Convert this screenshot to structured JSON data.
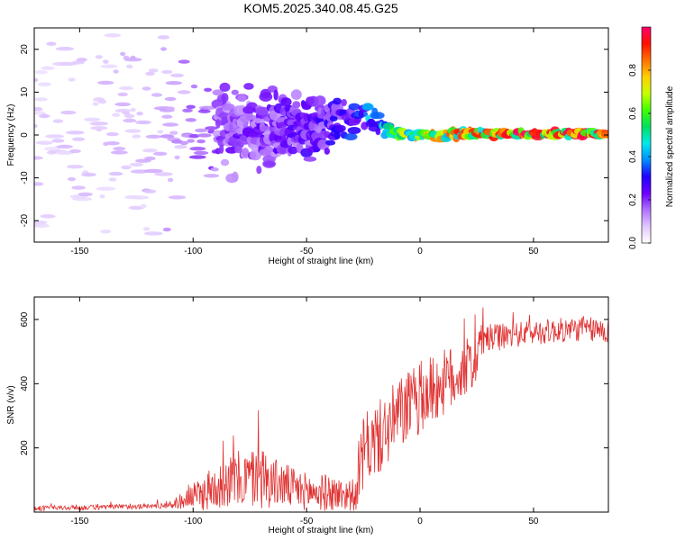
{
  "title": "KOM5.2025.340.08.45.G25",
  "chart_data": [
    {
      "id": "spectrogram",
      "type": "heatmap",
      "xlabel": "Height of straight line (km)",
      "ylabel": "Frequency (Hz)",
      "xlim": [
        -170,
        83
      ],
      "ylim": [
        -25,
        25
      ],
      "xticks": [
        -150,
        -100,
        -50,
        0,
        50
      ],
      "yticks": [
        -20,
        -10,
        0,
        10,
        20
      ],
      "colorbar": {
        "label": "Normalized spectral amplitude",
        "range": [
          0,
          1
        ],
        "ticks": [
          "0.0",
          "0.2",
          "0.4",
          "0.6",
          "0.8"
        ],
        "colors": [
          "#ffffff",
          "#e0c8ff",
          "#b070ff",
          "#6a00ff",
          "#2000ff",
          "#0090ff",
          "#00e8e8",
          "#00e060",
          "#40ff00",
          "#c8ff00",
          "#ffd000",
          "#ff7000",
          "#ff1000",
          "#ff0070"
        ]
      },
      "trace": {
        "x": [
          -170,
          -120,
          -110,
          -100,
          -90,
          -80,
          -70,
          -60,
          -50,
          -45,
          -40,
          -35,
          -30,
          -25,
          -20,
          -15,
          -10,
          -5,
          0,
          5,
          10,
          15,
          20,
          30,
          50,
          83
        ],
        "y_center": [
          0,
          0,
          0,
          1,
          1.5,
          2,
          2,
          1.5,
          2,
          2.5,
          3,
          3.5,
          4,
          4,
          3,
          1.5,
          0.5,
          0,
          0,
          0,
          0,
          0.2,
          0.3,
          0.3,
          0.3,
          0.3
        ],
        "amplitude": [
          0.08,
          0.1,
          0.12,
          0.18,
          0.2,
          0.22,
          0.22,
          0.24,
          0.25,
          0.26,
          0.28,
          0.3,
          0.34,
          0.4,
          0.42,
          0.5,
          0.62,
          0.75,
          0.85,
          0.85,
          0.8,
          0.85,
          0.9,
          0.92,
          0.95,
          0.95
        ],
        "spread": [
          22,
          22,
          20,
          12,
          10,
          8,
          8,
          7,
          7,
          6,
          5,
          4,
          3.5,
          3,
          2,
          1.5,
          1.2,
          1,
          0.8,
          0.8,
          1,
          0.8,
          0.8,
          0.7,
          0.7,
          0.7
        ]
      }
    },
    {
      "id": "snr",
      "type": "line",
      "xlabel": "Height of straight line (km)",
      "ylabel": "SNR (v/v)",
      "xlim": [
        -170,
        83
      ],
      "ylim": [
        0,
        670
      ],
      "xticks": [
        -150,
        -100,
        -50,
        0,
        50
      ],
      "yticks": [
        200,
        400,
        600
      ],
      "color": "#e03030",
      "envelope": {
        "x": [
          -170,
          -140,
          -120,
          -110,
          -105,
          -100,
          -95,
          -90,
          -85,
          -80,
          -75,
          -70,
          -65,
          -60,
          -55,
          -50,
          -45,
          -40,
          -35,
          -30,
          -28,
          -27,
          -25,
          -22,
          -20,
          -15,
          -10,
          -5,
          0,
          5,
          10,
          15,
          20,
          25,
          26,
          30,
          40,
          50,
          60,
          70,
          83
        ],
        "mean": [
          12,
          15,
          18,
          22,
          35,
          50,
          60,
          80,
          95,
          100,
          105,
          110,
          95,
          85,
          70,
          65,
          60,
          60,
          55,
          55,
          45,
          120,
          180,
          210,
          220,
          250,
          300,
          330,
          350,
          380,
          400,
          420,
          450,
          470,
          530,
          540,
          550,
          560,
          565,
          570,
          565
        ],
        "noise": [
          6,
          6,
          6,
          8,
          20,
          30,
          45,
          55,
          60,
          70,
          70,
          80,
          60,
          55,
          50,
          45,
          45,
          45,
          40,
          40,
          30,
          80,
          90,
          90,
          90,
          90,
          90,
          90,
          85,
          85,
          80,
          80,
          70,
          60,
          40,
          35,
          30,
          30,
          30,
          30,
          30
        ]
      }
    }
  ]
}
